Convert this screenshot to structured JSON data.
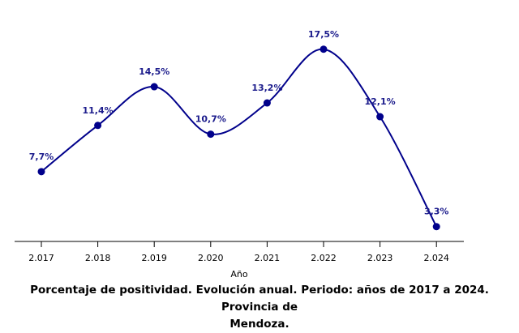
{
  "chart_data": {
    "type": "line",
    "categories": [
      "2.017",
      "2.018",
      "2.019",
      "2.020",
      "2.021",
      "2.022",
      "2.023",
      "2.024"
    ],
    "values": [
      7.7,
      11.4,
      14.5,
      10.7,
      13.2,
      17.5,
      12.1,
      3.3
    ],
    "data_labels": [
      "7,7%",
      "11,4%",
      "14,5%",
      "10,7%",
      "13,2%",
      "17,5%",
      "12,1%",
      "3,3%"
    ],
    "xlabel": "Año",
    "ylabel": "",
    "ylim": [
      0,
      18
    ],
    "grid": false,
    "smooth": true,
    "series_color": "#00008B",
    "label_color": "#1c1c8c",
    "axis_color": "#000000"
  },
  "caption": {
    "line1": "Porcentaje de positividad. Evolución anual.  Periodo: años de 2017 a 2024. Provincia de",
    "line2": "Mendoza."
  }
}
